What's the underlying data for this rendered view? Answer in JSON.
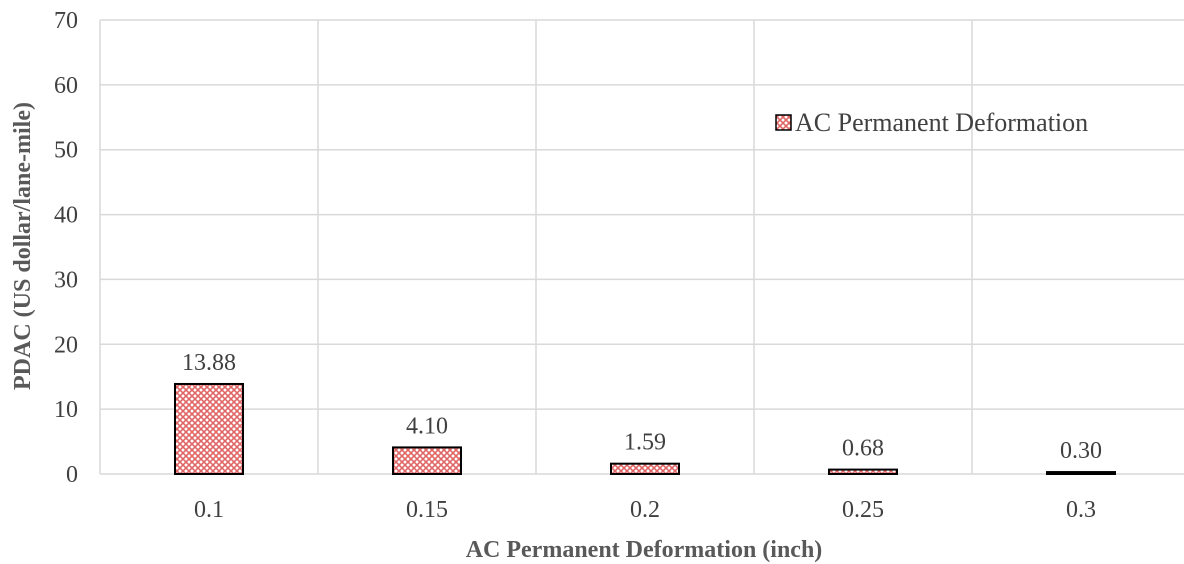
{
  "chart_data": {
    "type": "bar",
    "categories": [
      "0.1",
      "0.15",
      "0.2",
      "0.25",
      "0.3"
    ],
    "series": [
      {
        "name": "AC Permanent Deformation",
        "values": [
          13.88,
          4.1,
          1.59,
          0.68,
          0.3
        ],
        "data_labels": [
          "13.88",
          "4.10",
          "1.59",
          "0.68",
          "0.30"
        ]
      }
    ],
    "xlabel": "AC Permanent Deformation (inch)",
    "ylabel": "PDAC (US dollar/lane-mile)",
    "ylim": [
      0,
      70
    ],
    "yticks": [
      0,
      10,
      20,
      30,
      40,
      50,
      60,
      70
    ],
    "grid": true,
    "legend_position": "top-right",
    "colors": {
      "bar_pattern": "#e06666",
      "bar_fill": "#ffffff",
      "bar_edge": "#000000",
      "grid": "#d9d9d9"
    }
  }
}
